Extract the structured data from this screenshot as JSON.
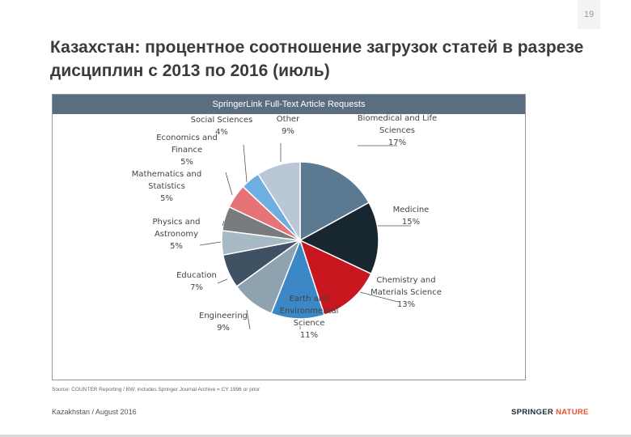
{
  "page": {
    "number": "19"
  },
  "title": "Казахстан: процентное соотношение загрузок статей в разрезе дисциплин с 2013 по 2016 (июль)",
  "chart_header": "SpringerLink Full-Text Article Requests",
  "chart_data": {
    "type": "pie",
    "title": "SpringerLink Full-Text Article Requests",
    "start": "12 o'clock",
    "direction": "clockwise",
    "slices": [
      {
        "name": "Biomedical and Life Sciences",
        "label_lines": [
          "Biomedical and Life",
          "Sciences"
        ],
        "value": 17,
        "value_label": "17%",
        "color": "#5b7a91"
      },
      {
        "name": "Medicine",
        "label_lines": [
          "Medicine"
        ],
        "value": 15,
        "value_label": "15%",
        "color": "#17262f"
      },
      {
        "name": "Chemistry and Materials Science",
        "label_lines": [
          "Chemistry and",
          "Materials Science"
        ],
        "value": 13,
        "value_label": "13%",
        "color": "#c8161f"
      },
      {
        "name": "Earth and Environmental Science",
        "label_lines": [
          "Earth and",
          "Environmental",
          "Science"
        ],
        "value": 11,
        "value_label": "11%",
        "color": "#3c87c6"
      },
      {
        "name": "Engineering",
        "label_lines": [
          "Engineering"
        ],
        "value": 9,
        "value_label": "9%",
        "color": "#8ea2b0"
      },
      {
        "name": "Education",
        "label_lines": [
          "Education"
        ],
        "value": 7,
        "value_label": "7%",
        "color": "#3f5264"
      },
      {
        "name": "Physics and Astronomy",
        "label_lines": [
          "Physics and",
          "Astronomy"
        ],
        "value": 5,
        "value_label": "5%",
        "color": "#a8b9c6"
      },
      {
        "name": "Mathematics and Statistics",
        "label_lines": [
          "Mathematics and",
          "Statistics"
        ],
        "value": 5,
        "value_label": "5%",
        "color": "#777b7e"
      },
      {
        "name": "Economics and Finance",
        "label_lines": [
          "Economics and",
          "Finance"
        ],
        "value": 5,
        "value_label": "5%",
        "color": "#e57378"
      },
      {
        "name": "Social Sciences",
        "label_lines": [
          "Social Sciences"
        ],
        "value": 4,
        "value_label": "4%",
        "color": "#6faee0"
      },
      {
        "name": "Other",
        "label_lines": [
          "Other"
        ],
        "value": 9,
        "value_label": "9%",
        "color": "#b9c8d4"
      }
    ]
  },
  "source": "Source: COUNTER Reporting / BW; includes Springer Journal Archive = CY 1996 or prior",
  "footer": {
    "left": "Kazakhstan / August 2016",
    "brand_part1": "SPRINGER",
    "brand_part2": " NATURE"
  }
}
